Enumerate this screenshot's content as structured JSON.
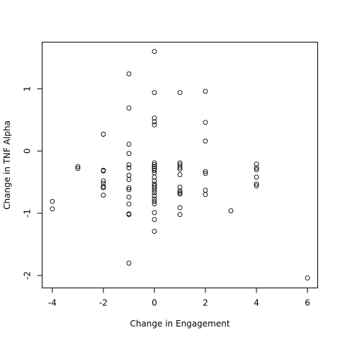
{
  "chart_data": {
    "type": "scatter",
    "title": "",
    "xlabel": "Change in Engagement",
    "ylabel": "Change in TNF Alpha",
    "xlim": [
      -4.4,
      6.4
    ],
    "ylim": [
      -2.2,
      1.75
    ],
    "xticks": [
      -4,
      -2,
      0,
      2,
      4,
      6
    ],
    "xtick_labels": [
      "-4",
      "-2",
      "0",
      "2",
      "4",
      "6"
    ],
    "yticks": [
      -2,
      -1,
      0,
      1
    ],
    "ytick_labels": [
      "-2",
      "-1",
      "0",
      "1"
    ],
    "grid": false,
    "legend": "none",
    "series": [
      {
        "points": [
          [
            -4,
            -0.81
          ],
          [
            -4,
            -0.93
          ],
          [
            -3,
            -0.25
          ],
          [
            -3,
            -0.28
          ],
          [
            -2,
            0.27
          ],
          [
            -2,
            -0.31
          ],
          [
            -2,
            -0.32
          ],
          [
            -2,
            -0.48
          ],
          [
            -2,
            -0.52
          ],
          [
            -2,
            -0.57
          ],
          [
            -2,
            -0.59
          ],
          [
            -2,
            -0.71
          ],
          [
            -1,
            1.24
          ],
          [
            -1,
            0.69
          ],
          [
            -1,
            0.11
          ],
          [
            -1,
            -0.04
          ],
          [
            -1,
            -0.22
          ],
          [
            -1,
            -0.27
          ],
          [
            -1,
            -0.39
          ],
          [
            -1,
            -0.46
          ],
          [
            -1,
            -0.59
          ],
          [
            -1,
            -0.62
          ],
          [
            -1,
            -0.74
          ],
          [
            -1,
            -0.85
          ],
          [
            -1,
            -1.01
          ],
          [
            -1,
            -1.02
          ],
          [
            -1,
            -1.8
          ],
          [
            0,
            1.6
          ],
          [
            0,
            0.94
          ],
          [
            0,
            0.53
          ],
          [
            0,
            0.47
          ],
          [
            0,
            0.42
          ],
          [
            0,
            -0.19
          ],
          [
            0,
            -0.22
          ],
          [
            0,
            -0.25
          ],
          [
            0,
            -0.28
          ],
          [
            0,
            -0.31
          ],
          [
            0,
            -0.35
          ],
          [
            0,
            -0.42
          ],
          [
            0,
            -0.48
          ],
          [
            0,
            -0.53
          ],
          [
            0,
            -0.56
          ],
          [
            0,
            -0.59
          ],
          [
            0,
            -0.63
          ],
          [
            0,
            -0.67
          ],
          [
            0,
            -0.72
          ],
          [
            0,
            -0.77
          ],
          [
            0,
            -0.81
          ],
          [
            0,
            -0.85
          ],
          [
            0,
            -0.99
          ],
          [
            0,
            -1.1
          ],
          [
            0,
            -1.29
          ],
          [
            1,
            0.94
          ],
          [
            1,
            -0.19
          ],
          [
            1,
            -0.22
          ],
          [
            1,
            -0.26
          ],
          [
            1,
            -0.29
          ],
          [
            1,
            -0.38
          ],
          [
            1,
            -0.58
          ],
          [
            1,
            -0.64
          ],
          [
            1,
            -0.67
          ],
          [
            1,
            -0.69
          ],
          [
            1,
            -0.91
          ],
          [
            1,
            -1.02
          ],
          [
            2,
            0.96
          ],
          [
            2,
            0.46
          ],
          [
            2,
            0.16
          ],
          [
            2,
            -0.33
          ],
          [
            2,
            -0.36
          ],
          [
            2,
            -0.63
          ],
          [
            2,
            -0.7
          ],
          [
            3,
            -0.96
          ],
          [
            4,
            -0.21
          ],
          [
            4,
            -0.27
          ],
          [
            4,
            -0.3
          ],
          [
            4,
            -0.42
          ],
          [
            4,
            -0.53
          ],
          [
            4,
            -0.56
          ],
          [
            6,
            -2.04
          ]
        ]
      }
    ]
  }
}
